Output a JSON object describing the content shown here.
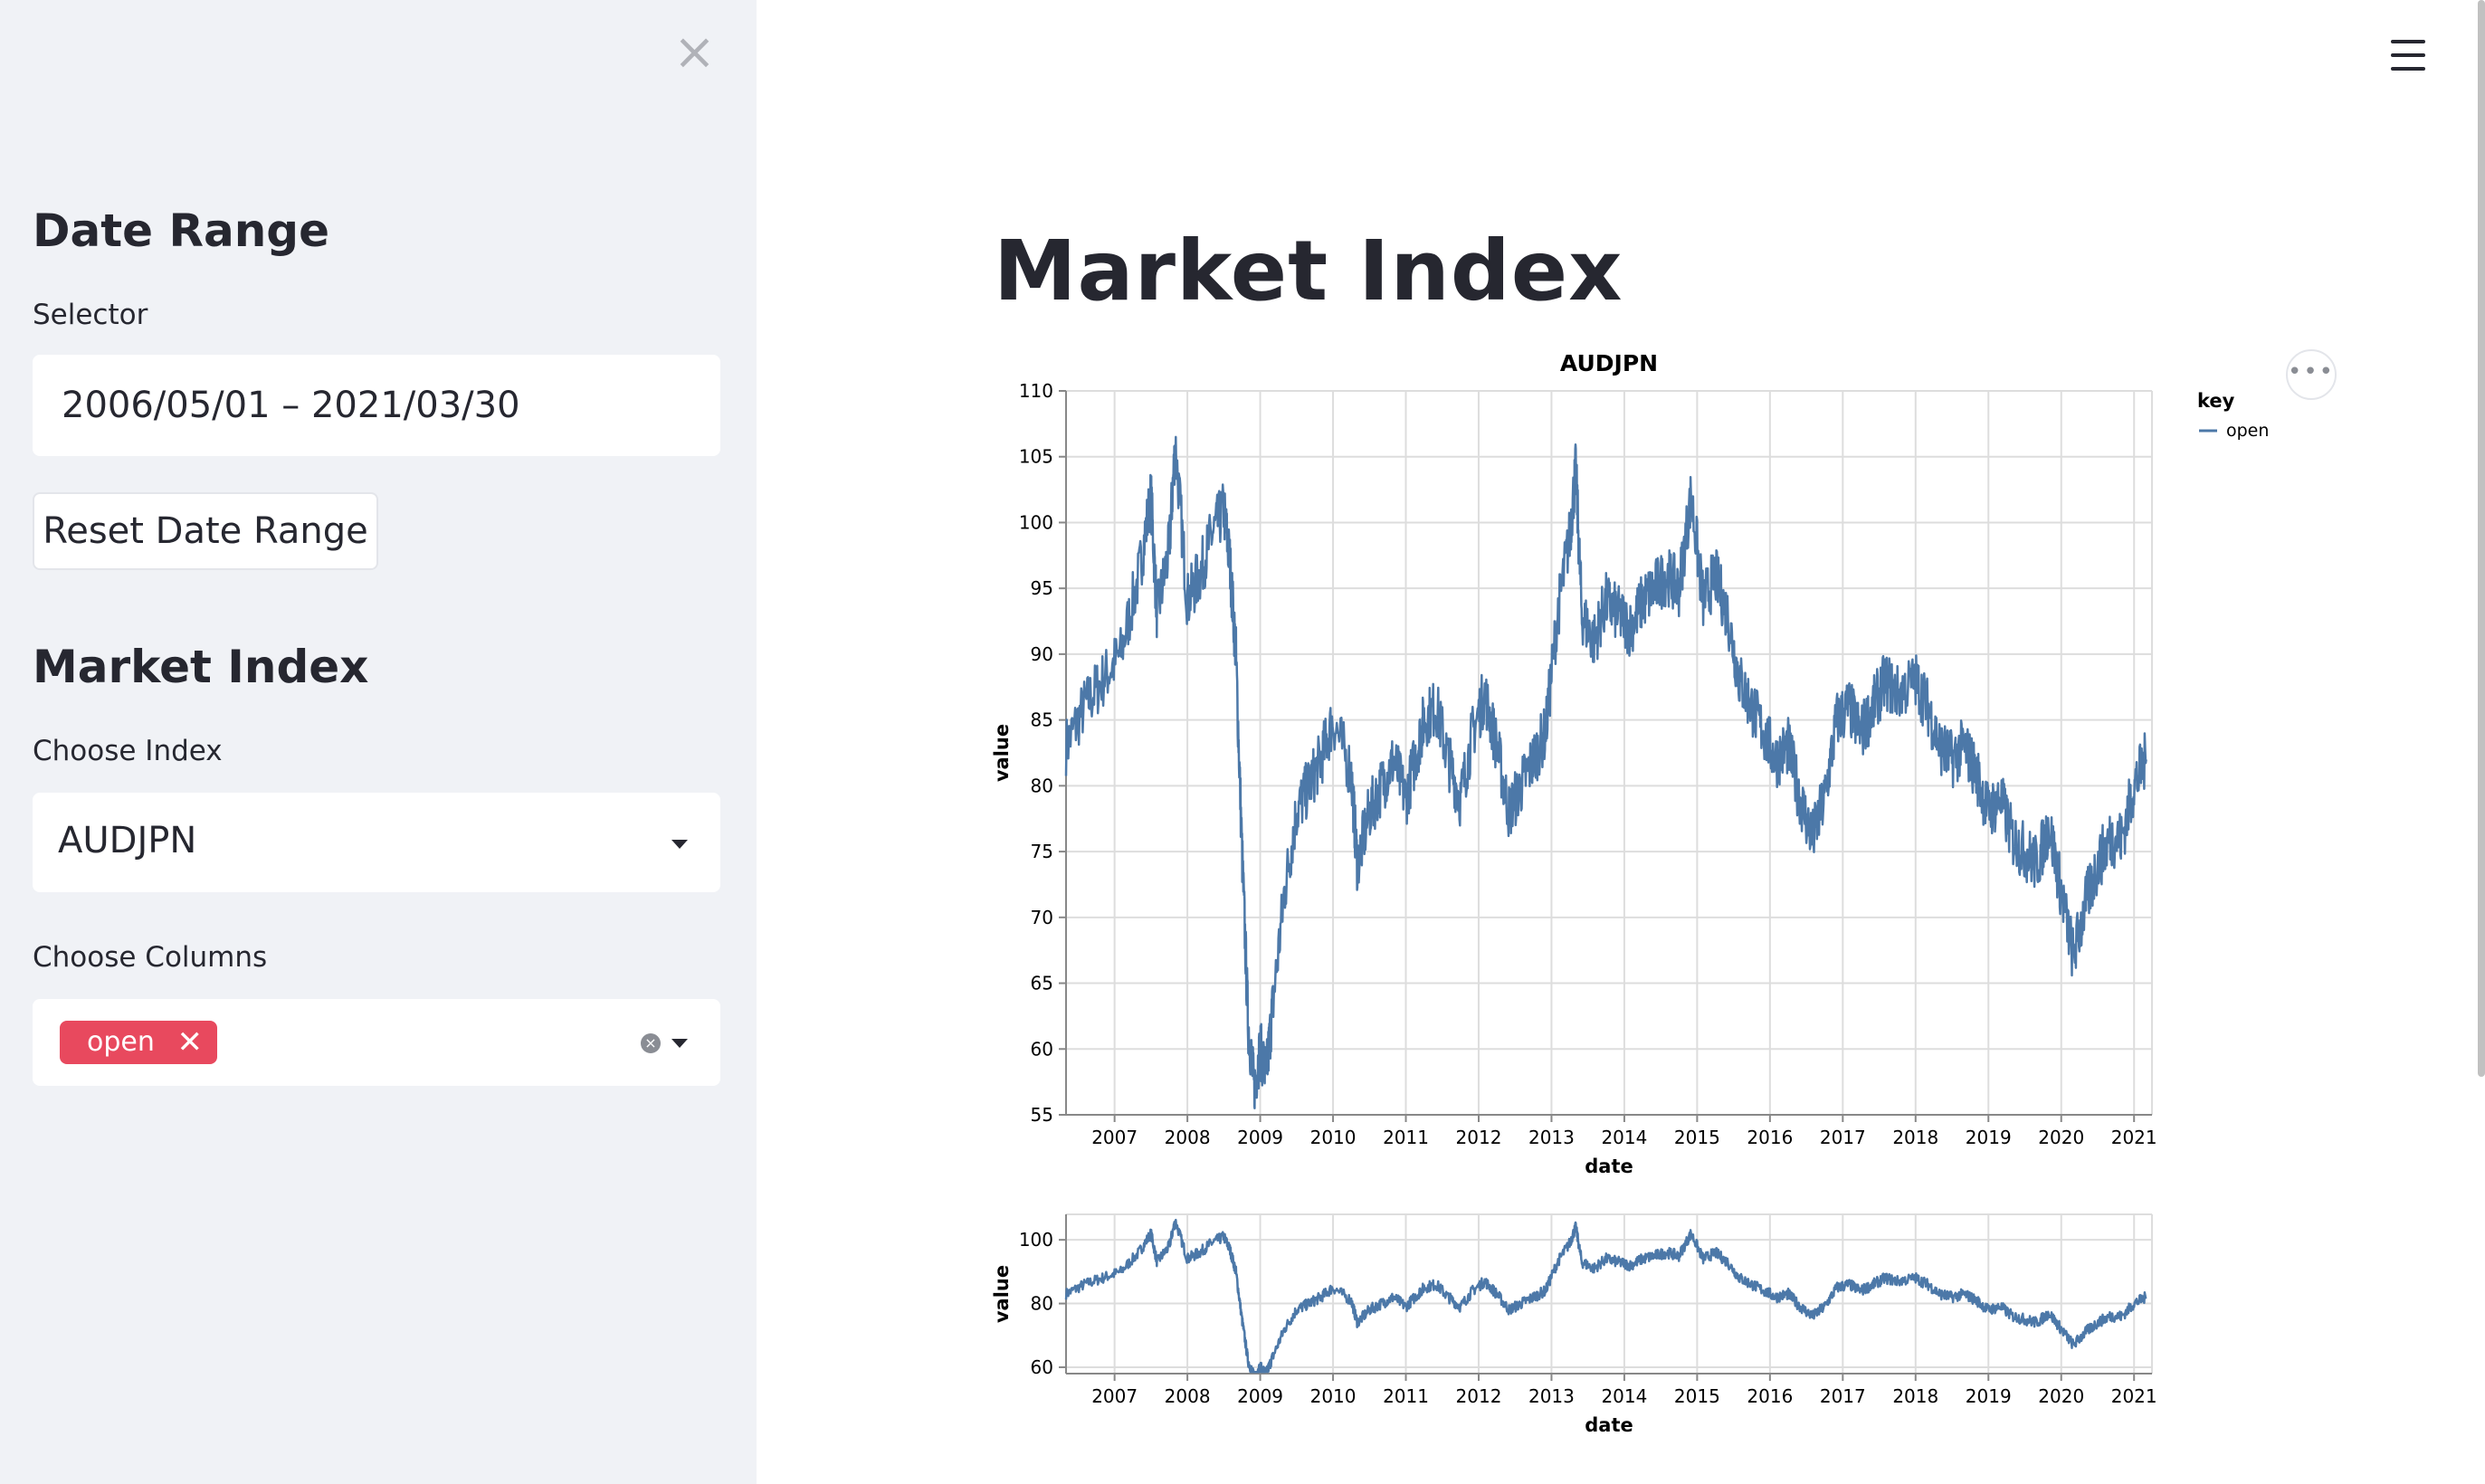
{
  "sidebar": {
    "close_label": "×",
    "date_range_heading": "Date Range",
    "selector_label": "Selector",
    "date_value": "2006/05/01 – 2021/03/30",
    "reset_label": "Reset Date Range",
    "market_index_heading": "Market Index",
    "choose_index_label": "Choose Index",
    "index_value": "AUDJPN",
    "choose_columns_label": "Choose Columns",
    "column_tags": [
      "open"
    ],
    "tag_remove_label": "✕",
    "clear_label": "×"
  },
  "main": {
    "title": "Market Index",
    "menu_icon": "hamburger-icon",
    "more_label": "•••"
  },
  "colors": {
    "accent": "#e8495e",
    "line": "#4c78a8",
    "grid": "#dddddd"
  },
  "chart_data": [
    {
      "type": "line",
      "title": "AUDJPN",
      "xlabel": "date",
      "ylabel": "value",
      "ylim": [
        55,
        110
      ],
      "yticks": [
        55,
        60,
        65,
        70,
        75,
        80,
        85,
        90,
        95,
        100,
        105,
        110
      ],
      "xlim": [
        "2006-05-01",
        "2021-03-30"
      ],
      "xticks": [
        "2007",
        "2008",
        "2009",
        "2010",
        "2011",
        "2012",
        "2013",
        "2014",
        "2015",
        "2016",
        "2017",
        "2018",
        "2019",
        "2020",
        "2021"
      ],
      "grid": true,
      "legend": {
        "title": "key",
        "placement": "top-right",
        "entries": [
          "open"
        ]
      },
      "series": [
        {
          "name": "open",
          "x": [
            "2006-05",
            "2006-08",
            "2006-11",
            "2007-02",
            "2007-05",
            "2007-07",
            "2007-08",
            "2007-10",
            "2007-11",
            "2008-01",
            "2008-03",
            "2008-05",
            "2008-07",
            "2008-08",
            "2008-09",
            "2008-10",
            "2008-11",
            "2008-12",
            "2009-01",
            "2009-02",
            "2009-03",
            "2009-05",
            "2009-07",
            "2009-09",
            "2009-11",
            "2010-01",
            "2010-04",
            "2010-05",
            "2010-07",
            "2010-09",
            "2010-11",
            "2011-01",
            "2011-03",
            "2011-04",
            "2011-06",
            "2011-08",
            "2011-10",
            "2011-12",
            "2012-02",
            "2012-04",
            "2012-06",
            "2012-08",
            "2012-10",
            "2012-12",
            "2013-02",
            "2013-04",
            "2013-05",
            "2013-06",
            "2013-08",
            "2013-10",
            "2013-12",
            "2014-02",
            "2014-04",
            "2014-06",
            "2014-08",
            "2014-10",
            "2014-12",
            "2015-02",
            "2015-04",
            "2015-06",
            "2015-08",
            "2015-10",
            "2015-12",
            "2016-02",
            "2016-04",
            "2016-06",
            "2016-08",
            "2016-10",
            "2016-12",
            "2017-02",
            "2017-04",
            "2017-06",
            "2017-08",
            "2017-10",
            "2018-01",
            "2018-03",
            "2018-05",
            "2018-07",
            "2018-09",
            "2018-11",
            "2019-01",
            "2019-03",
            "2019-05",
            "2019-07",
            "2019-09",
            "2019-11",
            "2020-01",
            "2020-03",
            "2020-05",
            "2020-07",
            "2020-09",
            "2020-11",
            "2021-01",
            "2021-03"
          ],
          "values": [
            83,
            86,
            88,
            90,
            96,
            102,
            93,
            98,
            106,
            94,
            96,
            99,
            101,
            97,
            90,
            75,
            62,
            57,
            60,
            58,
            63,
            72,
            78,
            80,
            82,
            85,
            81,
            74,
            78,
            80,
            82,
            79,
            83,
            85,
            86,
            82,
            79,
            84,
            87,
            83,
            78,
            80,
            82,
            84,
            93,
            99,
            104,
            93,
            91,
            94,
            93,
            92,
            94,
            95,
            96,
            95,
            102,
            94,
            96,
            93,
            88,
            86,
            84,
            82,
            83,
            79,
            76,
            79,
            85,
            86,
            84,
            86,
            88,
            87,
            88,
            86,
            83,
            82,
            83,
            81,
            78,
            79,
            76,
            75,
            74,
            77,
            72,
            67,
            71,
            74,
            76,
            76,
            80,
            82
          ]
        }
      ]
    },
    {
      "type": "line",
      "title": "",
      "xlabel": "date",
      "ylabel": "value",
      "ylim": [
        58,
        108
      ],
      "yticks": [
        60,
        80,
        100
      ],
      "xlim": [
        "2006-05-01",
        "2021-03-30"
      ],
      "xticks": [
        "2007",
        "2008",
        "2009",
        "2010",
        "2011",
        "2012",
        "2013",
        "2014",
        "2015",
        "2016",
        "2017",
        "2018",
        "2019",
        "2020",
        "2021"
      ],
      "grid": true,
      "series": [
        {
          "name": "open",
          "x": [
            "2006-05",
            "2006-08",
            "2006-11",
            "2007-02",
            "2007-05",
            "2007-07",
            "2007-08",
            "2007-10",
            "2007-11",
            "2008-01",
            "2008-03",
            "2008-05",
            "2008-07",
            "2008-08",
            "2008-09",
            "2008-10",
            "2008-11",
            "2008-12",
            "2009-01",
            "2009-02",
            "2009-03",
            "2009-05",
            "2009-07",
            "2009-09",
            "2009-11",
            "2010-01",
            "2010-04",
            "2010-05",
            "2010-07",
            "2010-09",
            "2010-11",
            "2011-01",
            "2011-03",
            "2011-04",
            "2011-06",
            "2011-08",
            "2011-10",
            "2011-12",
            "2012-02",
            "2012-04",
            "2012-06",
            "2012-08",
            "2012-10",
            "2012-12",
            "2013-02",
            "2013-04",
            "2013-05",
            "2013-06",
            "2013-08",
            "2013-10",
            "2013-12",
            "2014-02",
            "2014-04",
            "2014-06",
            "2014-08",
            "2014-10",
            "2014-12",
            "2015-02",
            "2015-04",
            "2015-06",
            "2015-08",
            "2015-10",
            "2015-12",
            "2016-02",
            "2016-04",
            "2016-06",
            "2016-08",
            "2016-10",
            "2016-12",
            "2017-02",
            "2017-04",
            "2017-06",
            "2017-08",
            "2017-10",
            "2018-01",
            "2018-03",
            "2018-05",
            "2018-07",
            "2018-09",
            "2018-11",
            "2019-01",
            "2019-03",
            "2019-05",
            "2019-07",
            "2019-09",
            "2019-11",
            "2020-01",
            "2020-03",
            "2020-05",
            "2020-07",
            "2020-09",
            "2020-11",
            "2021-01",
            "2021-03"
          ],
          "values": [
            83,
            86,
            88,
            90,
            96,
            102,
            93,
            98,
            106,
            94,
            96,
            99,
            101,
            97,
            90,
            75,
            62,
            57,
            60,
            58,
            63,
            72,
            78,
            80,
            82,
            85,
            81,
            74,
            78,
            80,
            82,
            79,
            83,
            85,
            86,
            82,
            79,
            84,
            87,
            83,
            78,
            80,
            82,
            84,
            93,
            99,
            104,
            93,
            91,
            94,
            93,
            92,
            94,
            95,
            96,
            95,
            102,
            94,
            96,
            93,
            88,
            86,
            84,
            82,
            83,
            79,
            76,
            79,
            85,
            86,
            84,
            86,
            88,
            87,
            88,
            86,
            83,
            82,
            83,
            81,
            78,
            79,
            76,
            75,
            74,
            77,
            72,
            67,
            71,
            74,
            76,
            76,
            80,
            82
          ]
        }
      ]
    }
  ]
}
